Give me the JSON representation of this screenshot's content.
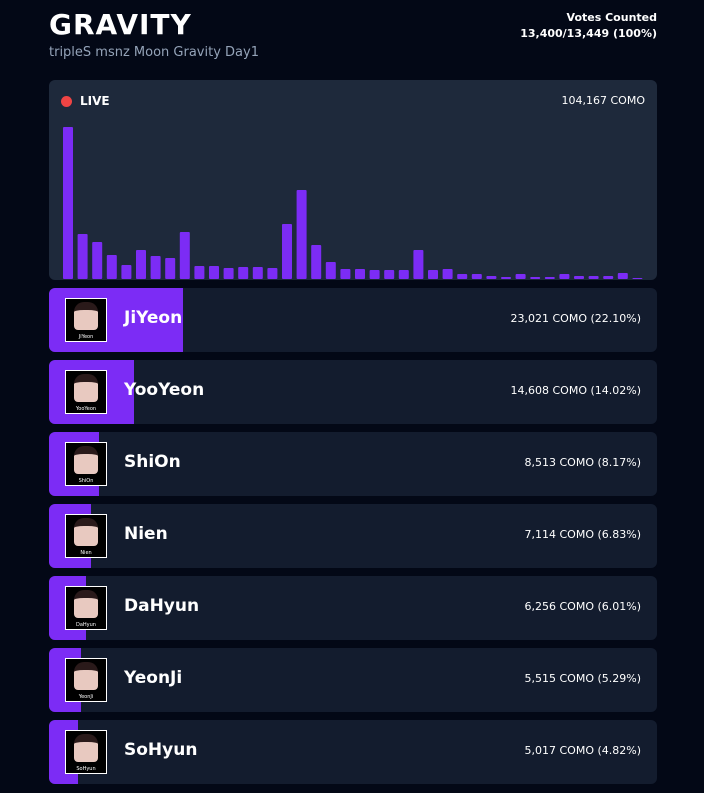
{
  "header": {
    "title": "GRAVITY",
    "subtitle": "tripleS msnz Moon Gravity Day1",
    "votes_label": "Votes Counted",
    "votes_value": "13,400/13,449 (100%)"
  },
  "live": {
    "label": "LIVE",
    "total": "104,167 COMO"
  },
  "chart_data": {
    "type": "bar",
    "color": "#7c2cf5",
    "values": [
      152,
      45,
      37,
      24,
      14,
      29,
      23,
      21,
      47,
      13,
      13,
      11,
      12,
      12,
      11,
      55,
      89,
      34,
      17,
      10,
      10,
      9,
      9,
      9,
      29,
      9,
      10,
      5,
      5,
      3,
      2,
      5,
      2,
      2,
      5,
      3,
      3,
      3,
      6,
      1
    ]
  },
  "rows": [
    {
      "name": "JiYeon",
      "label": "23,021 COMO (22.10%)",
      "percent": 22.1
    },
    {
      "name": "YooYeon",
      "label": "14,608 COMO (14.02%)",
      "percent": 14.02
    },
    {
      "name": "ShiOn",
      "label": "8,513 COMO (8.17%)",
      "percent": 8.17
    },
    {
      "name": "Nien",
      "label": "7,114 COMO (6.83%)",
      "percent": 6.83
    },
    {
      "name": "DaHyun",
      "label": "6,256 COMO (6.01%)",
      "percent": 6.01
    },
    {
      "name": "YeonJi",
      "label": "5,515 COMO (5.29%)",
      "percent": 5.29
    },
    {
      "name": "SoHyun",
      "label": "5,017 COMO (4.82%)",
      "percent": 4.82
    }
  ]
}
